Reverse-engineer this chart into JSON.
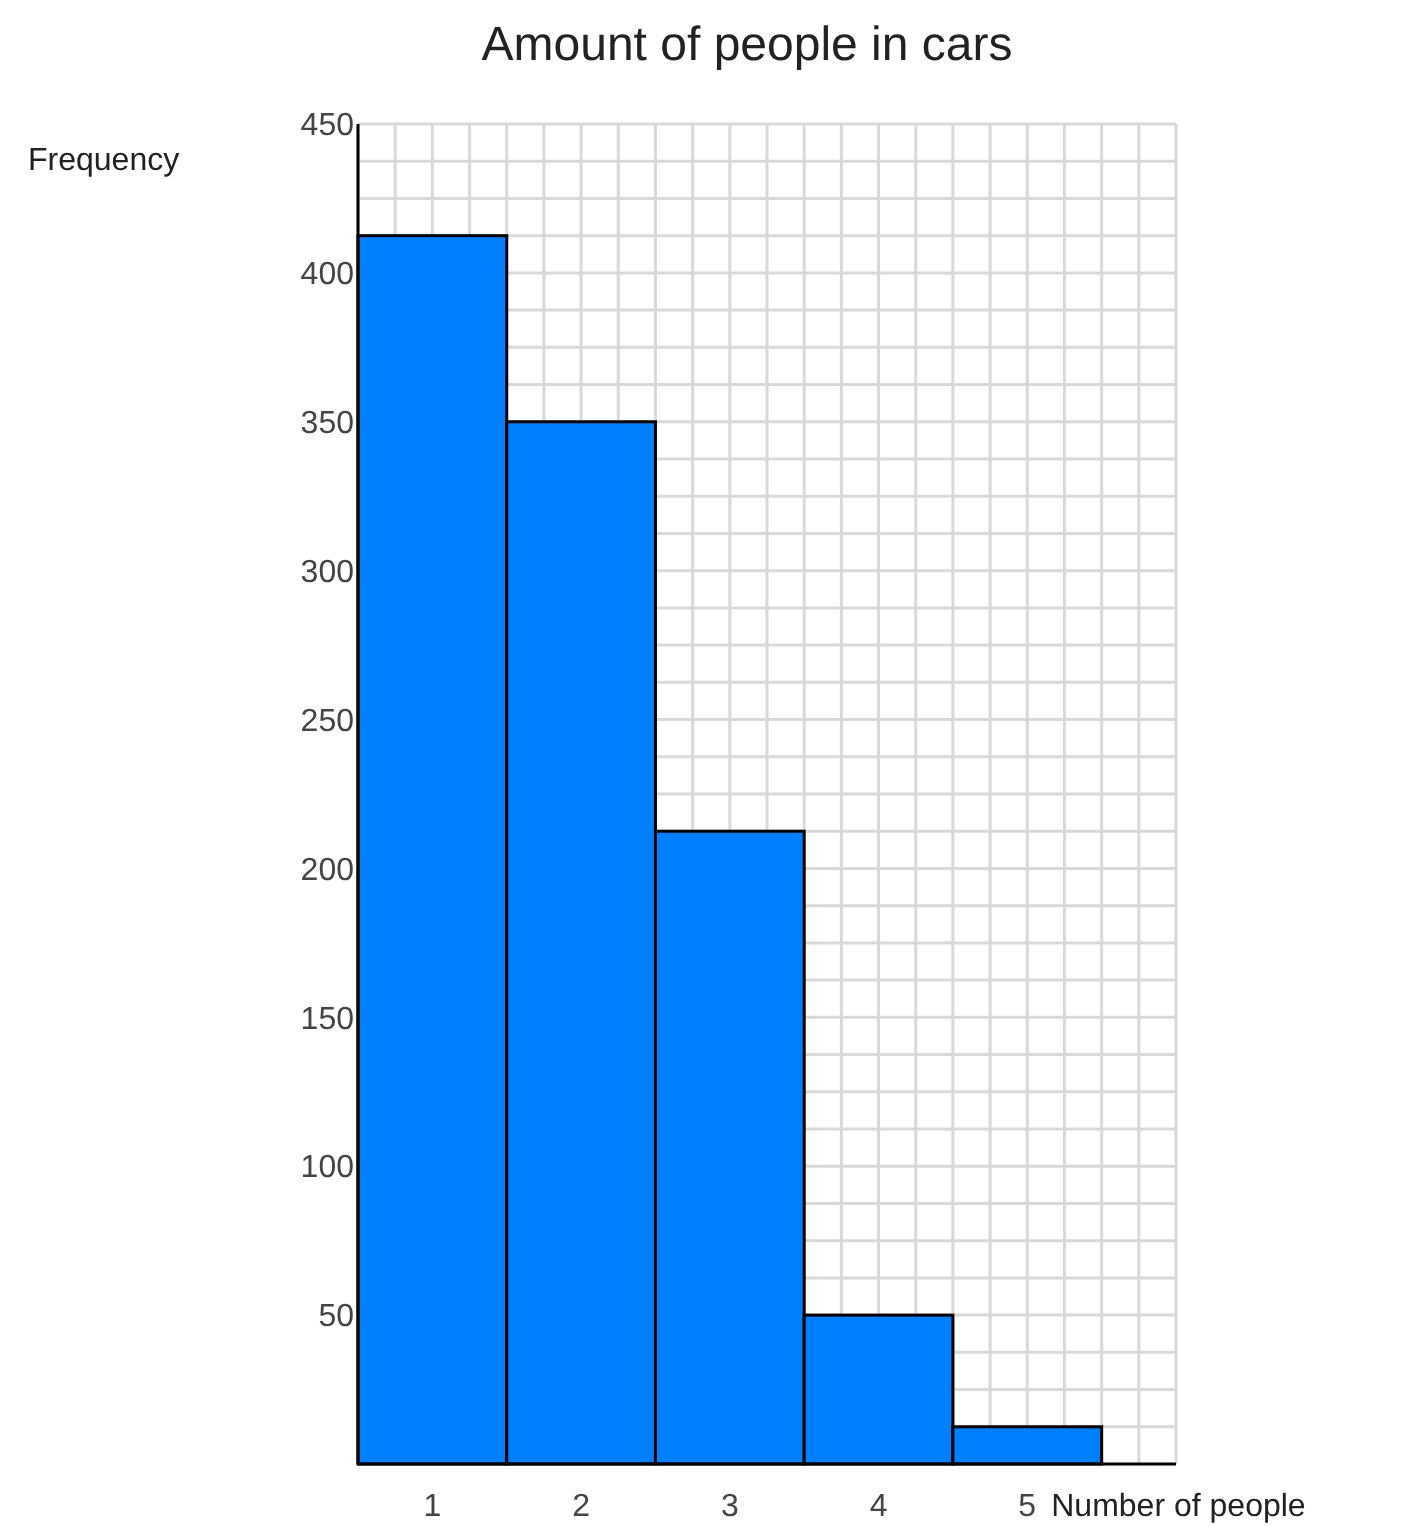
{
  "chart_data": {
    "type": "histogram",
    "title": "Amount of people in cars",
    "xlabel": "Number of people",
    "ylabel": "Frequency",
    "bins": [
      0.5,
      1.5,
      2.5,
      3.5,
      4.5,
      5.5
    ],
    "values": [
      412.5,
      350,
      212.5,
      50,
      12.5
    ],
    "color": "#007fff",
    "xlim": [
      0.5,
      6
    ],
    "xticks": [
      1,
      2,
      3,
      4,
      5
    ],
    "ylim": [
      0,
      450
    ],
    "yticks": [
      50,
      100,
      150,
      200,
      250,
      300,
      350,
      400,
      450
    ],
    "grid": true
  }
}
